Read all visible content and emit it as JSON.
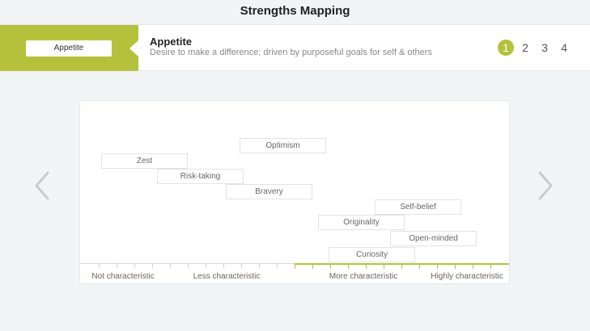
{
  "app": {
    "title": "Strengths Mapping"
  },
  "header": {
    "category_button": "Appetite",
    "category_name": "Appetite",
    "category_description": "Desire to make a difference; driven by purposeful goals for self & others",
    "pages": [
      "1",
      "2",
      "3",
      "4"
    ],
    "active_page": "1"
  },
  "nav": {
    "prev_icon": "chevron-left-icon",
    "next_icon": "chevron-right-icon"
  },
  "chips": [
    {
      "label": "Optimism"
    },
    {
      "label": "Zest"
    },
    {
      "label": "Risk-taking"
    },
    {
      "label": "Bravery"
    },
    {
      "label": "Self-belief"
    },
    {
      "label": "Originality"
    },
    {
      "label": "Open-minded"
    },
    {
      "label": "Curiosity"
    }
  ],
  "scale": {
    "labels": [
      "Not characteristic",
      "Less characteristic",
      "More characteristic",
      "Highly characteristic"
    ]
  },
  "colors": {
    "accent": "#b6c13b",
    "background": "#f3f4f6"
  }
}
